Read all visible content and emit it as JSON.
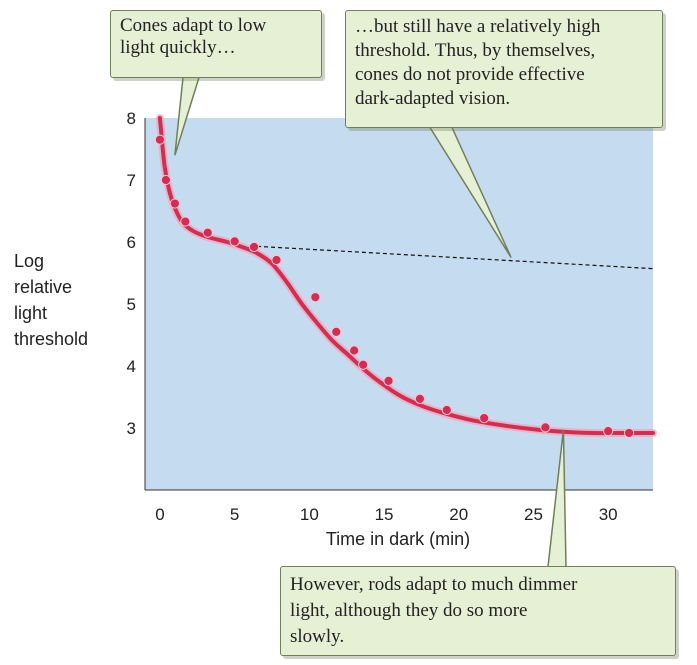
{
  "chart_data": {
    "type": "line",
    "xlabel": "Time in dark (min)",
    "ylabel_lines": [
      "Log",
      "relative",
      "light",
      "threshold"
    ],
    "xlim": [
      -1,
      33
    ],
    "ylim": [
      2,
      8
    ],
    "xticks": [
      0,
      5,
      10,
      15,
      20,
      25,
      30
    ],
    "yticks": [
      3,
      4,
      5,
      6,
      7,
      8
    ],
    "grid": false,
    "background_color": "#c5dbef",
    "series": [
      {
        "style": "solid",
        "color": "#d92b52",
        "x": [
          0,
          0.3,
          0.6,
          1.0,
          1.5,
          2.2,
          3.2,
          4.5,
          5.5,
          6.5,
          7.5,
          8.5,
          9.5,
          10.5,
          11.5,
          12.5,
          13.5,
          14.5,
          16,
          17.5,
          19,
          21,
          23,
          25,
          27,
          29,
          31,
          33
        ],
        "y": [
          8.0,
          7.25,
          6.85,
          6.55,
          6.32,
          6.18,
          6.08,
          6.0,
          5.92,
          5.82,
          5.65,
          5.35,
          5.0,
          4.7,
          4.42,
          4.2,
          3.98,
          3.78,
          3.53,
          3.36,
          3.24,
          3.12,
          3.04,
          2.98,
          2.94,
          2.92,
          2.92,
          2.92
        ]
      },
      {
        "style": "dashed",
        "color": "#111111",
        "x": [
          6.5,
          33
        ],
        "y": [
          5.93,
          5.57
        ]
      }
    ],
    "points": {
      "x": [
        0,
        0.4,
        1.0,
        1.7,
        3.2,
        5.0,
        6.3,
        7.8,
        10.4,
        11.8,
        13.0,
        13.6,
        15.3,
        17.4,
        19.2,
        21.7,
        25.8,
        30.0,
        31.4
      ],
      "y": [
        7.65,
        7.0,
        6.62,
        6.33,
        6.15,
        6.01,
        5.92,
        5.71,
        5.11,
        4.55,
        4.25,
        4.02,
        3.76,
        3.47,
        3.29,
        3.16,
        3.01,
        2.95,
        2.92
      ],
      "color": "#d92b52"
    },
    "annotations": [
      {
        "text": "Cones adapt to low light quickly…",
        "points_to": {
          "x": 1.0,
          "y": 7.4
        }
      },
      {
        "text": "…but still have a relatively high threshold. Thus, by themselves, cones do not provide effective dark-adapted vision.",
        "points_to": {
          "x": 23.5,
          "y": 5.75
        }
      },
      {
        "text": "However, rods adapt to much dimmer light, although they do so more slowly.",
        "points_to": {
          "x": 27,
          "y": 2.97
        }
      }
    ]
  },
  "callouts": {
    "cones_quick_lines": [
      "Cones adapt to low",
      "light quickly…"
    ],
    "cones_threshold_lines": [
      "…but still have a relatively high",
      "threshold. Thus, by themselves,",
      "cones do not provide effective",
      "dark-adapted vision."
    ],
    "rods_lines": [
      "However, rods adapt to much dimmer",
      "light, although they do so more",
      "slowly."
    ]
  },
  "colors": {
    "plot_background": "#c5dbef",
    "curve": "#d92b52",
    "curve_glow": "#e9a8b6",
    "callout_fill": "#e6f0d5",
    "callout_border": "#6f7f5a"
  }
}
